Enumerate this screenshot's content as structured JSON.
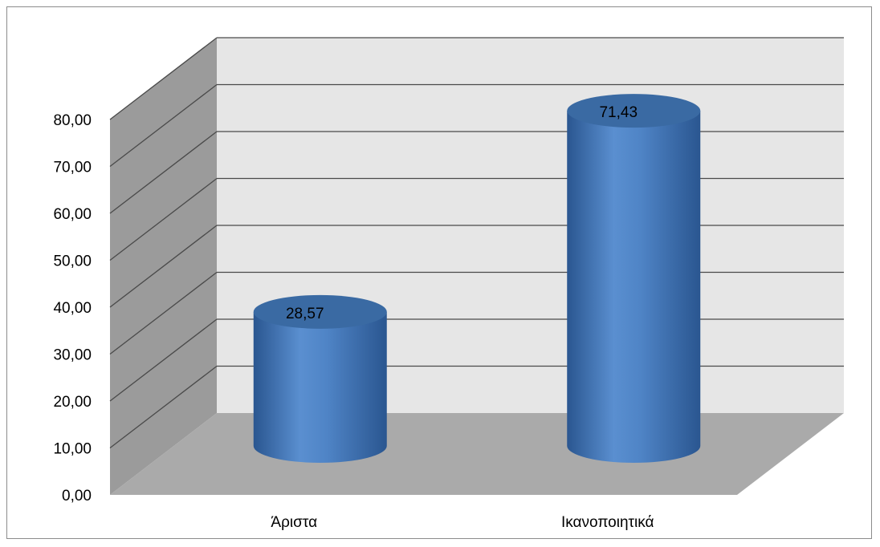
{
  "chart_data": {
    "type": "bar",
    "style": "3d-cylinder",
    "categories": [
      "Άριστα",
      "Ικανοποιητικά"
    ],
    "series": [
      {
        "values": [
          28.57,
          71.43
        ],
        "data_labels": [
          "28,57",
          "71,43"
        ]
      }
    ],
    "ylim": [
      0,
      80
    ],
    "yticks": [
      0,
      10,
      20,
      30,
      40,
      50,
      60,
      70,
      80
    ],
    "ytick_labels": [
      "0,00",
      "10,00",
      "20,00",
      "30,00",
      "40,00",
      "50,00",
      "60,00",
      "70,00",
      "80,00"
    ],
    "title": "",
    "xlabel": "",
    "ylabel": "",
    "grid": true,
    "legend": "none",
    "colors": {
      "bar": "#4f81bd",
      "bar_dark": "#2c5a92",
      "bar_top": "#3a6aa3",
      "back_wall": "#e6e6e6",
      "side_wall": "#9b9b9b",
      "floor": "#aaaaaa",
      "grid": "#4a4a4a"
    }
  }
}
